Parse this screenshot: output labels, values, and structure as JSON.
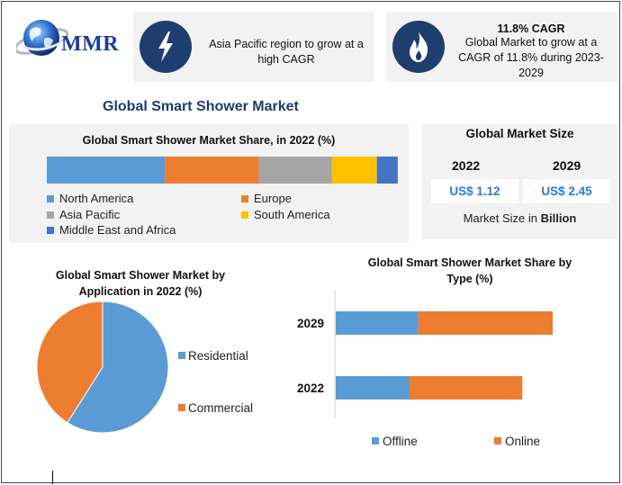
{
  "brand": {
    "logo_text": "MMR"
  },
  "callouts": [
    {
      "headline": "",
      "text": "Asia Pacific region to grow at a high CAGR",
      "icon": "lightning-bolt-icon"
    },
    {
      "headline": "11.8% CAGR",
      "text": "Global Market to grow at a CAGR of 11.8% during 2023-2029",
      "icon": "flame-icon"
    }
  ],
  "main_title": "Global Smart Shower Market",
  "market_size": {
    "title": "Global Market Size",
    "years": [
      "2022",
      "2029"
    ],
    "values": [
      "US$ 1.12",
      "US$ 2.45"
    ],
    "unit_prefix": "Market Size in ",
    "unit_bold": "Billion"
  },
  "colors": {
    "blue": "#5b9bd5",
    "orange": "#ed7d31",
    "gray": "#a5a5a5",
    "yellow": "#ffc000",
    "darkblue": "#4472c4",
    "navy": "#1d3e6f",
    "panel": "#f2f2f2"
  },
  "chart_data": [
    {
      "id": "regional-share",
      "type": "bar",
      "stacked": true,
      "orientation": "horizontal",
      "title": "Global Smart Shower Market Share, in 2022 (%)",
      "categories": [
        "2022"
      ],
      "series": [
        {
          "name": "North America",
          "values": [
            34
          ]
        },
        {
          "name": "Europe",
          "values": [
            27
          ]
        },
        {
          "name": "Asia Pacific",
          "values": [
            21
          ]
        },
        {
          "name": "South America",
          "values": [
            13
          ]
        },
        {
          "name": "Middle East and Africa",
          "values": [
            6
          ]
        }
      ],
      "xlim": [
        0,
        100
      ],
      "legend": "bottom"
    },
    {
      "id": "application-share",
      "type": "pie",
      "title": "Global Smart Shower Market by Application in 2022 (%)",
      "categories": [
        "Residential",
        "Commercial"
      ],
      "values": [
        59,
        41
      ],
      "legend": "right"
    },
    {
      "id": "type-share",
      "type": "bar",
      "stacked": true,
      "orientation": "horizontal",
      "title": "Global Smart Shower Market Share by Type (%)",
      "categories": [
        "2029",
        "2022"
      ],
      "series": [
        {
          "name": "Offline",
          "values": [
            38,
            34
          ]
        },
        {
          "name": "Online",
          "values": [
            62,
            52
          ]
        }
      ],
      "xlim": [
        0,
        130
      ],
      "legend": "bottom"
    }
  ]
}
